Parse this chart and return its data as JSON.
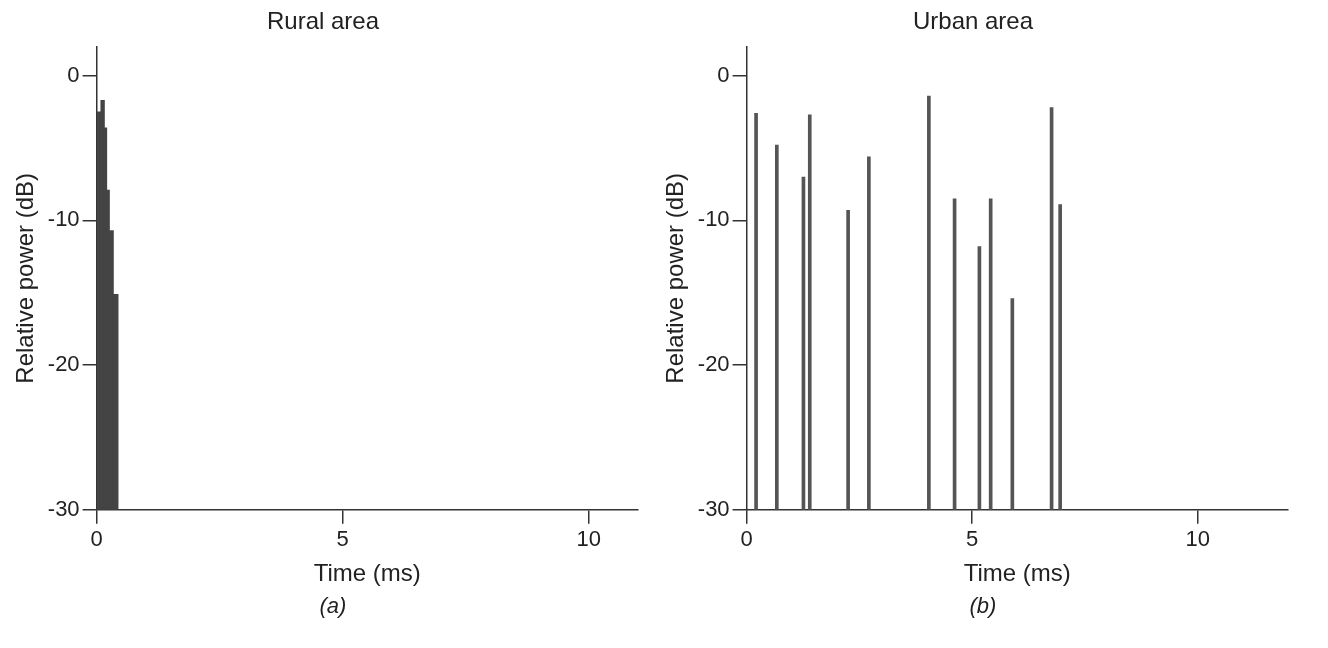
{
  "chart_data": [
    {
      "type": "bar",
      "title": "Rural area",
      "xlabel": "Time (ms)",
      "ylabel": "Relative power (dB)",
      "annotations": [
        "(a)"
      ],
      "x": [
        0.05,
        0.13,
        0.18,
        0.225,
        0.29,
        0.385
      ],
      "base": [
        -30,
        -30,
        -30,
        -30,
        -30,
        -30
      ],
      "values": [
        27.5,
        28.3,
        26.4,
        22.1,
        19.3,
        14.9
      ],
      "color": "#444444",
      "xlim": [
        0,
        11
      ],
      "xticks": [
        0,
        5,
        10
      ],
      "ylim": [
        -30,
        2
      ],
      "yticks": [
        0,
        -10,
        -20,
        -30
      ],
      "grid": false,
      "legend": false
    },
    {
      "type": "bar",
      "title": "Urban area",
      "xlabel": "Time (ms)",
      "ylabel": "Relative power (dB)",
      "annotations": [
        "(b)"
      ],
      "x": [
        0.21,
        0.67,
        1.26,
        1.4,
        2.25,
        2.71,
        4.04,
        4.61,
        5.16,
        5.41,
        5.89,
        6.76,
        6.95
      ],
      "base": [
        -30,
        -30,
        -30,
        -30,
        -30,
        -30,
        -30,
        -30,
        -30,
        -30,
        -30,
        -30,
        -30
      ],
      "values": [
        27.4,
        25.2,
        23.0,
        27.3,
        20.7,
        24.4,
        28.6,
        21.5,
        18.2,
        21.5,
        14.6,
        27.8,
        21.1
      ],
      "color": "#555555",
      "xlim": [
        0,
        12
      ],
      "xticks": [
        0,
        5,
        10
      ],
      "ylim": [
        -30,
        2
      ],
      "yticks": [
        0,
        -10,
        -20,
        -30
      ],
      "grid": false,
      "legend": false
    }
  ]
}
